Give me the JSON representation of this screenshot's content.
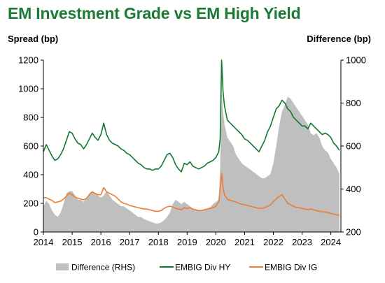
{
  "title": "EM Investment Grade vs EM High Yield",
  "left_axis_title": "Spread (bp)",
  "right_axis_title": "Difference (bp)",
  "colors": {
    "title": "#1c7a34",
    "hy": "#0f7a2e",
    "ig": "#ed7d31",
    "diff": "#bfbfbf"
  },
  "chart_data": {
    "type": "line",
    "title": "EM Investment Grade vs EM High Yield",
    "ylabel": "Spread (bp)",
    "y2label": "Difference (bp)",
    "ylim": [
      0,
      1200
    ],
    "y2lim": [
      200,
      1000
    ],
    "yticks": [
      0,
      200,
      400,
      600,
      800,
      1000,
      1200
    ],
    "y2ticks": [
      200,
      400,
      600,
      800,
      1000
    ],
    "xlim": [
      2014.0,
      2024.35
    ],
    "xticks": [
      "2014",
      "2015",
      "2016",
      "2017",
      "2018",
      "2019",
      "2020",
      "2021",
      "2022",
      "2023",
      "2024"
    ],
    "legend_position": "bottom",
    "grid": false,
    "series": [
      {
        "name": "Difference (RHS)",
        "type": "area",
        "axis": "right",
        "color": "#bfbfbf",
        "x": [
          2014.0,
          2014.1,
          2014.2,
          2014.3,
          2014.4,
          2014.5,
          2014.6,
          2014.7,
          2014.8,
          2014.9,
          2015.0,
          2015.1,
          2015.2,
          2015.3,
          2015.4,
          2015.5,
          2015.6,
          2015.7,
          2015.8,
          2015.9,
          2016.0,
          2016.1,
          2016.2,
          2016.3,
          2016.4,
          2016.5,
          2016.6,
          2016.7,
          2016.8,
          2016.9,
          2017.0,
          2017.1,
          2017.2,
          2017.3,
          2017.4,
          2017.5,
          2017.6,
          2017.7,
          2017.8,
          2017.9,
          2018.0,
          2018.1,
          2018.2,
          2018.3,
          2018.4,
          2018.5,
          2018.6,
          2018.7,
          2018.8,
          2018.9,
          2019.0,
          2019.1,
          2019.2,
          2019.3,
          2019.4,
          2019.5,
          2019.6,
          2019.7,
          2019.8,
          2019.9,
          2020.0,
          2020.1,
          2020.15,
          2020.2,
          2020.25,
          2020.3,
          2020.4,
          2020.5,
          2020.6,
          2020.7,
          2020.8,
          2020.9,
          2021.0,
          2021.1,
          2021.2,
          2021.3,
          2021.4,
          2021.5,
          2021.6,
          2021.7,
          2021.8,
          2021.9,
          2022.0,
          2022.1,
          2022.2,
          2022.3,
          2022.4,
          2022.5,
          2022.6,
          2022.7,
          2022.8,
          2022.9,
          2023.0,
          2023.1,
          2023.2,
          2023.3,
          2023.4,
          2023.5,
          2023.6,
          2023.7,
          2023.8,
          2023.9,
          2024.0,
          2024.1,
          2024.2,
          2024.3
        ],
        "values": [
          320,
          345,
          330,
          300,
          280,
          270,
          290,
          330,
          380,
          390,
          390,
          370,
          350,
          350,
          340,
          360,
          380,
          390,
          380,
          370,
          360,
          370,
          390,
          370,
          350,
          340,
          330,
          320,
          320,
          310,
          300,
          290,
          280,
          270,
          270,
          260,
          255,
          250,
          245,
          240,
          240,
          245,
          255,
          270,
          290,
          330,
          350,
          340,
          330,
          340,
          330,
          320,
          310,
          305,
          300,
          300,
          305,
          310,
          315,
          330,
          340,
          350,
          500,
          850,
          760,
          700,
          640,
          620,
          600,
          560,
          540,
          520,
          510,
          500,
          490,
          480,
          470,
          460,
          450,
          450,
          460,
          470,
          520,
          600,
          690,
          760,
          790,
          830,
          820,
          800,
          780,
          760,
          740,
          720,
          700,
          660,
          650,
          660,
          640,
          600,
          580,
          570,
          540,
          520,
          500,
          470
        ]
      },
      {
        "name": "EMBIG Div HY",
        "type": "line",
        "axis": "left",
        "color": "#0f7a2e",
        "x": [
          2014.0,
          2014.1,
          2014.2,
          2014.3,
          2014.4,
          2014.5,
          2014.6,
          2014.7,
          2014.8,
          2014.9,
          2015.0,
          2015.1,
          2015.2,
          2015.3,
          2015.4,
          2015.5,
          2015.6,
          2015.7,
          2015.8,
          2015.9,
          2016.0,
          2016.1,
          2016.2,
          2016.3,
          2016.4,
          2016.5,
          2016.6,
          2016.7,
          2016.8,
          2016.9,
          2017.0,
          2017.1,
          2017.2,
          2017.3,
          2017.4,
          2017.5,
          2017.6,
          2017.7,
          2017.8,
          2017.9,
          2018.0,
          2018.1,
          2018.2,
          2018.3,
          2018.4,
          2018.5,
          2018.6,
          2018.7,
          2018.8,
          2018.9,
          2019.0,
          2019.1,
          2019.2,
          2019.3,
          2019.4,
          2019.5,
          2019.6,
          2019.7,
          2019.8,
          2019.9,
          2020.0,
          2020.1,
          2020.15,
          2020.2,
          2020.25,
          2020.3,
          2020.4,
          2020.5,
          2020.6,
          2020.7,
          2020.8,
          2020.9,
          2021.0,
          2021.1,
          2021.2,
          2021.3,
          2021.4,
          2021.5,
          2021.6,
          2021.7,
          2021.8,
          2021.9,
          2022.0,
          2022.1,
          2022.2,
          2022.3,
          2022.4,
          2022.5,
          2022.6,
          2022.7,
          2022.8,
          2022.9,
          2023.0,
          2023.1,
          2023.2,
          2023.3,
          2023.4,
          2023.5,
          2023.6,
          2023.7,
          2023.8,
          2023.9,
          2024.0,
          2024.1,
          2024.2,
          2024.3
        ],
        "values": [
          560,
          610,
          570,
          530,
          500,
          510,
          540,
          580,
          640,
          700,
          690,
          650,
          620,
          610,
          580,
          610,
          650,
          690,
          660,
          640,
          680,
          760,
          680,
          640,
          620,
          610,
          600,
          580,
          570,
          550,
          540,
          520,
          500,
          480,
          470,
          450,
          440,
          440,
          430,
          440,
          440,
          460,
          500,
          540,
          550,
          520,
          470,
          440,
          420,
          480,
          470,
          490,
          460,
          450,
          440,
          450,
          460,
          480,
          490,
          500,
          520,
          560,
          650,
          1200,
          980,
          880,
          780,
          760,
          740,
          720,
          700,
          680,
          650,
          640,
          620,
          600,
          580,
          560,
          600,
          640,
          700,
          740,
          800,
          860,
          880,
          920,
          900,
          860,
          840,
          800,
          780,
          760,
          740,
          740,
          720,
          760,
          740,
          720,
          700,
          680,
          690,
          680,
          660,
          620,
          600,
          570
        ]
      },
      {
        "name": "EMBIG Div IG",
        "type": "line",
        "axis": "left",
        "color": "#ed7d31",
        "x": [
          2014.0,
          2014.1,
          2014.2,
          2014.3,
          2014.4,
          2014.5,
          2014.6,
          2014.7,
          2014.8,
          2014.9,
          2015.0,
          2015.1,
          2015.2,
          2015.3,
          2015.4,
          2015.5,
          2015.6,
          2015.7,
          2015.8,
          2015.9,
          2016.0,
          2016.1,
          2016.2,
          2016.3,
          2016.4,
          2016.5,
          2016.6,
          2016.7,
          2016.8,
          2016.9,
          2017.0,
          2017.1,
          2017.2,
          2017.3,
          2017.4,
          2017.5,
          2017.6,
          2017.7,
          2017.8,
          2017.9,
          2018.0,
          2018.1,
          2018.2,
          2018.3,
          2018.4,
          2018.5,
          2018.6,
          2018.7,
          2018.8,
          2018.9,
          2019.0,
          2019.1,
          2019.2,
          2019.3,
          2019.4,
          2019.5,
          2019.6,
          2019.7,
          2019.8,
          2019.9,
          2020.0,
          2020.1,
          2020.15,
          2020.2,
          2020.25,
          2020.3,
          2020.4,
          2020.5,
          2020.6,
          2020.7,
          2020.8,
          2020.9,
          2021.0,
          2021.1,
          2021.2,
          2021.3,
          2021.4,
          2021.5,
          2021.6,
          2021.7,
          2021.8,
          2021.9,
          2022.0,
          2022.1,
          2022.2,
          2022.3,
          2022.4,
          2022.5,
          2022.6,
          2022.7,
          2022.8,
          2022.9,
          2023.0,
          2023.1,
          2023.2,
          2023.3,
          2023.4,
          2023.5,
          2023.6,
          2023.7,
          2023.8,
          2023.9,
          2024.0,
          2024.1,
          2024.2,
          2024.3
        ],
        "values": [
          240,
          240,
          230,
          220,
          205,
          210,
          215,
          230,
          250,
          270,
          260,
          245,
          235,
          230,
          225,
          235,
          260,
          280,
          270,
          260,
          260,
          310,
          280,
          270,
          260,
          250,
          230,
          210,
          200,
          195,
          185,
          180,
          175,
          170,
          165,
          160,
          160,
          155,
          150,
          145,
          145,
          150,
          165,
          175,
          180,
          175,
          165,
          160,
          155,
          170,
          165,
          170,
          160,
          155,
          150,
          150,
          155,
          160,
          165,
          170,
          180,
          210,
          300,
          410,
          310,
          260,
          230,
          220,
          215,
          210,
          200,
          195,
          190,
          185,
          180,
          175,
          170,
          165,
          165,
          170,
          180,
          190,
          210,
          230,
          250,
          260,
          230,
          200,
          190,
          180,
          170,
          170,
          165,
          160,
          155,
          160,
          155,
          150,
          145,
          140,
          140,
          135,
          130,
          125,
          120,
          115
        ]
      }
    ]
  }
}
